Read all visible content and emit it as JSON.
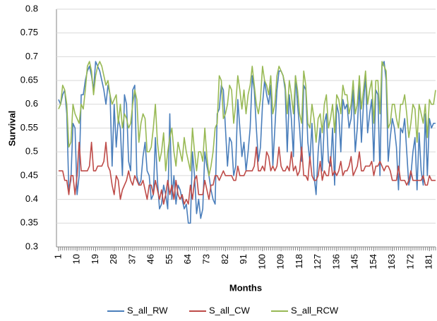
{
  "chart_data": {
    "type": "line",
    "x_label": "Months",
    "y_label": "Survival",
    "x": [
      1,
      2,
      3,
      4,
      5,
      6,
      7,
      8,
      9,
      10,
      11,
      12,
      13,
      14,
      15,
      16,
      17,
      18,
      19,
      20,
      21,
      22,
      23,
      24,
      25,
      26,
      27,
      28,
      29,
      30,
      31,
      32,
      33,
      34,
      35,
      36,
      37,
      38,
      39,
      40,
      41,
      42,
      43,
      44,
      45,
      46,
      47,
      48,
      49,
      50,
      51,
      52,
      53,
      54,
      55,
      56,
      57,
      58,
      59,
      60,
      61,
      62,
      63,
      64,
      65,
      66,
      67,
      68,
      69,
      70,
      71,
      72,
      73,
      74,
      75,
      76,
      77,
      78,
      79,
      80,
      81,
      82,
      83,
      84,
      85,
      86,
      87,
      88,
      89,
      90,
      91,
      92,
      93,
      94,
      95,
      96,
      97,
      98,
      99,
      100,
      101,
      102,
      103,
      104,
      105,
      106,
      107,
      108,
      109,
      110,
      111,
      112,
      113,
      114,
      115,
      116,
      117,
      118,
      119,
      120,
      121,
      122,
      123,
      124,
      125,
      126,
      127,
      128,
      129,
      130,
      131,
      132,
      133,
      134,
      135,
      136,
      137,
      138,
      139,
      140,
      141,
      142,
      143,
      144,
      145,
      146,
      147,
      148,
      149,
      150,
      151,
      152,
      153,
      154,
      155,
      156,
      157,
      158,
      159,
      160,
      161,
      162,
      163,
      164,
      165,
      166,
      167,
      168,
      169,
      170,
      171,
      172,
      173,
      174,
      175,
      176,
      177,
      178,
      179,
      180,
      181,
      182,
      183,
      184
    ],
    "xlim": [
      0,
      184
    ],
    "xticks": [
      1,
      10,
      19,
      28,
      37,
      46,
      55,
      64,
      73,
      82,
      91,
      100,
      109,
      118,
      127,
      136,
      145,
      154,
      163,
      172,
      181
    ],
    "ylim": [
      0.3,
      0.8
    ],
    "yticks": [
      0.3,
      0.35,
      0.4,
      0.45,
      0.5,
      0.55,
      0.6,
      0.65,
      0.7,
      0.75,
      0.8
    ],
    "grid": true,
    "legend": "bottom",
    "series": [
      {
        "name": "S_all_RW",
        "color": "#4a7ebb",
        "values": [
          0.61,
          0.6,
          0.62,
          0.63,
          0.58,
          0.42,
          0.44,
          0.56,
          0.55,
          0.41,
          0.45,
          0.62,
          0.62,
          0.65,
          0.67,
          0.68,
          0.66,
          0.63,
          0.69,
          0.68,
          0.67,
          0.65,
          0.63,
          0.6,
          0.64,
          0.62,
          0.47,
          0.6,
          0.51,
          0.57,
          0.55,
          0.45,
          0.62,
          0.6,
          0.48,
          0.46,
          0.63,
          0.64,
          0.45,
          0.43,
          0.44,
          0.49,
          0.52,
          0.46,
          0.45,
          0.4,
          0.41,
          0.53,
          0.44,
          0.38,
          0.39,
          0.43,
          0.41,
          0.38,
          0.58,
          0.4,
          0.45,
          0.39,
          0.43,
          0.42,
          0.4,
          0.38,
          0.39,
          0.35,
          0.35,
          0.5,
          0.45,
          0.37,
          0.4,
          0.36,
          0.38,
          0.5,
          0.47,
          0.45,
          0.42,
          0.4,
          0.39,
          0.58,
          0.59,
          0.64,
          0.63,
          0.55,
          0.47,
          0.53,
          0.52,
          0.45,
          0.47,
          0.61,
          0.55,
          0.49,
          0.52,
          0.46,
          0.5,
          0.55,
          0.66,
          0.63,
          0.55,
          0.48,
          0.51,
          0.6,
          0.65,
          0.62,
          0.6,
          0.64,
          0.47,
          0.55,
          0.63,
          0.67,
          0.67,
          0.66,
          0.63,
          0.5,
          0.62,
          0.57,
          0.49,
          0.66,
          0.6,
          0.55,
          0.48,
          0.64,
          0.63,
          0.52,
          0.48,
          0.56,
          0.45,
          0.41,
          0.5,
          0.55,
          0.46,
          0.56,
          0.58,
          0.48,
          0.47,
          0.55,
          0.43,
          0.6,
          0.58,
          0.5,
          0.61,
          0.59,
          0.6,
          0.55,
          0.57,
          0.63,
          0.5,
          0.55,
          0.64,
          0.52,
          0.6,
          0.66,
          0.54,
          0.58,
          0.61,
          0.48,
          0.63,
          0.62,
          0.45,
          0.68,
          0.69,
          0.65,
          0.48,
          0.53,
          0.57,
          0.55,
          0.51,
          0.42,
          0.55,
          0.54,
          0.57,
          0.5,
          0.43,
          0.45,
          0.5,
          0.53,
          0.42,
          0.54,
          0.46,
          0.43,
          0.58,
          0.45,
          0.57,
          0.55,
          0.56,
          0.56
        ]
      },
      {
        "name": "S_all_CW",
        "color": "#be4b48",
        "values": [
          0.46,
          0.46,
          0.46,
          0.44,
          0.44,
          0.41,
          0.45,
          0.45,
          0.41,
          0.45,
          0.52,
          0.46,
          0.46,
          0.46,
          0.46,
          0.47,
          0.52,
          0.46,
          0.46,
          0.47,
          0.47,
          0.47,
          0.48,
          0.52,
          0.47,
          0.46,
          0.43,
          0.41,
          0.45,
          0.44,
          0.4,
          0.42,
          0.43,
          0.44,
          0.46,
          0.44,
          0.43,
          0.45,
          0.44,
          0.43,
          0.43,
          0.44,
          0.42,
          0.4,
          0.43,
          0.43,
          0.41,
          0.44,
          0.42,
          0.4,
          0.42,
          0.39,
          0.41,
          0.44,
          0.41,
          0.43,
          0.4,
          0.44,
          0.41,
          0.4,
          0.41,
          0.39,
          0.4,
          0.39,
          0.43,
          0.4,
          0.44,
          0.45,
          0.41,
          0.41,
          0.41,
          0.44,
          0.42,
          0.4,
          0.43,
          0.43,
          0.45,
          0.45,
          0.44,
          0.45,
          0.46,
          0.45,
          0.45,
          0.45,
          0.45,
          0.44,
          0.44,
          0.47,
          0.45,
          0.45,
          0.45,
          0.46,
          0.46,
          0.46,
          0.46,
          0.47,
          0.51,
          0.46,
          0.46,
          0.47,
          0.46,
          0.5,
          0.49,
          0.46,
          0.47,
          0.46,
          0.47,
          0.51,
          0.47,
          0.46,
          0.46,
          0.47,
          0.46,
          0.5,
          0.46,
          0.47,
          0.45,
          0.46,
          0.51,
          0.45,
          0.45,
          0.44,
          0.49,
          0.45,
          0.44,
          0.44,
          0.45,
          0.48,
          0.44,
          0.46,
          0.45,
          0.45,
          0.49,
          0.45,
          0.46,
          0.45,
          0.46,
          0.48,
          0.45,
          0.46,
          0.46,
          0.47,
          0.49,
          0.45,
          0.46,
          0.47,
          0.5,
          0.46,
          0.46,
          0.47,
          0.47,
          0.47,
          0.48,
          0.45,
          0.47,
          0.47,
          0.48,
          0.47,
          0.46,
          0.47,
          0.47,
          0.46,
          0.44,
          0.44,
          0.44,
          0.47,
          0.44,
          0.44,
          0.44,
          0.43,
          0.44,
          0.46,
          0.44,
          0.44,
          0.44,
          0.44,
          0.44,
          0.45,
          0.43,
          0.43,
          0.45,
          0.44,
          0.44,
          0.44
        ]
      },
      {
        "name": "S_all_RCW",
        "color": "#98b954",
        "values": [
          0.59,
          0.6,
          0.64,
          0.63,
          0.6,
          0.51,
          0.52,
          0.6,
          0.58,
          0.57,
          0.56,
          0.6,
          0.59,
          0.63,
          0.68,
          0.69,
          0.67,
          0.62,
          0.66,
          0.68,
          0.69,
          0.68,
          0.66,
          0.64,
          0.65,
          0.62,
          0.6,
          0.61,
          0.62,
          0.56,
          0.6,
          0.55,
          0.58,
          0.57,
          0.55,
          0.56,
          0.6,
          0.63,
          0.61,
          0.52,
          0.56,
          0.58,
          0.57,
          0.5,
          0.5,
          0.51,
          0.55,
          0.6,
          0.52,
          0.48,
          0.5,
          0.54,
          0.46,
          0.5,
          0.53,
          0.55,
          0.5,
          0.47,
          0.52,
          0.5,
          0.48,
          0.53,
          0.5,
          0.48,
          0.46,
          0.55,
          0.5,
          0.46,
          0.5,
          0.5,
          0.48,
          0.55,
          0.49,
          0.45,
          0.47,
          0.5,
          0.55,
          0.56,
          0.66,
          0.65,
          0.57,
          0.58,
          0.6,
          0.64,
          0.63,
          0.56,
          0.6,
          0.66,
          0.63,
          0.59,
          0.63,
          0.58,
          0.62,
          0.64,
          0.68,
          0.64,
          0.6,
          0.58,
          0.61,
          0.68,
          0.65,
          0.64,
          0.62,
          0.66,
          0.58,
          0.6,
          0.66,
          0.68,
          0.67,
          0.66,
          0.64,
          0.58,
          0.65,
          0.62,
          0.58,
          0.66,
          0.63,
          0.58,
          0.56,
          0.67,
          0.64,
          0.56,
          0.55,
          0.6,
          0.57,
          0.52,
          0.57,
          0.58,
          0.54,
          0.6,
          0.62,
          0.55,
          0.57,
          0.6,
          0.54,
          0.62,
          0.61,
          0.58,
          0.64,
          0.62,
          0.62,
          0.58,
          0.6,
          0.65,
          0.58,
          0.6,
          0.66,
          0.59,
          0.63,
          0.67,
          0.6,
          0.63,
          0.65,
          0.56,
          0.65,
          0.65,
          0.58,
          0.69,
          0.68,
          0.67,
          0.55,
          0.56,
          0.6,
          0.6,
          0.57,
          0.55,
          0.6,
          0.6,
          0.62,
          0.58,
          0.53,
          0.56,
          0.6,
          0.59,
          0.52,
          0.6,
          0.58,
          0.56,
          0.6,
          0.53,
          0.61,
          0.6,
          0.6,
          0.63
        ]
      }
    ]
  }
}
